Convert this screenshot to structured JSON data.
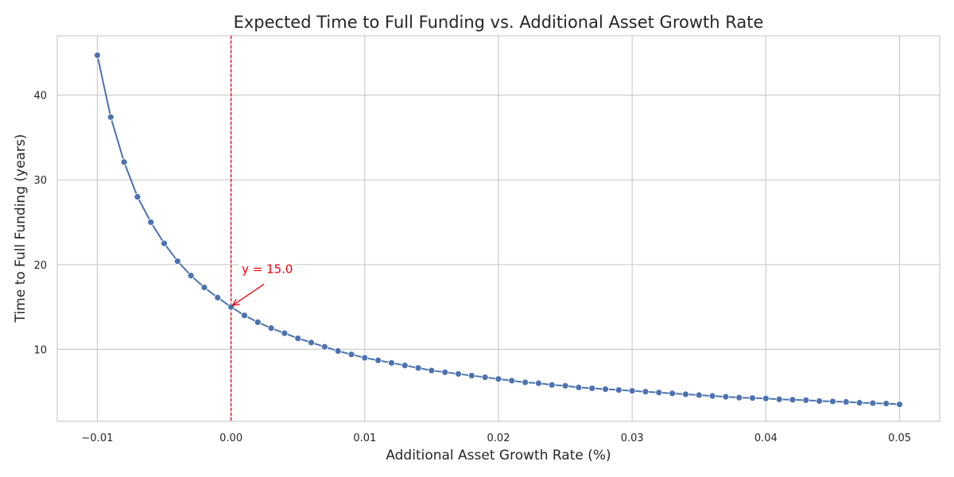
{
  "chart_data": {
    "type": "line",
    "title": "Expected Time to Full Funding vs. Additional Asset Growth Rate",
    "xlabel": "Additional Asset Growth Rate (%)",
    "ylabel": "Time to Full Funding (years)",
    "xlim": [
      -0.013,
      0.053
    ],
    "ylim": [
      1.5,
      47
    ],
    "xticks": [
      -0.01,
      0.0,
      0.01,
      0.02,
      0.03,
      0.04,
      0.05
    ],
    "xtick_labels": [
      "−0.01",
      "0.00",
      "0.01",
      "0.02",
      "0.03",
      "0.04",
      "0.05"
    ],
    "yticks": [
      10,
      20,
      30,
      40
    ],
    "ytick_labels": [
      "10",
      "20",
      "30",
      "40"
    ],
    "grid": true,
    "series": [
      {
        "x": [
          -0.01,
          -0.009,
          -0.008,
          -0.007,
          -0.006,
          -0.005,
          -0.004,
          -0.003,
          -0.002,
          -0.001,
          0.0,
          0.001,
          0.002,
          0.003,
          0.004,
          0.005,
          0.006,
          0.007,
          0.008,
          0.009,
          0.01,
          0.011,
          0.012,
          0.013,
          0.014,
          0.015,
          0.016,
          0.017,
          0.018,
          0.019,
          0.02,
          0.021,
          0.022,
          0.023,
          0.024,
          0.025,
          0.026,
          0.027,
          0.028,
          0.029,
          0.03,
          0.031,
          0.032,
          0.033,
          0.034,
          0.035,
          0.036,
          0.037,
          0.038,
          0.039,
          0.04,
          0.041,
          0.042,
          0.043,
          0.044,
          0.045,
          0.046,
          0.047,
          0.048,
          0.049,
          0.05
        ],
        "y": [
          44.7,
          37.4,
          32.1,
          28.0,
          25.0,
          22.5,
          20.4,
          18.7,
          17.3,
          16.1,
          15.0,
          14.0,
          13.2,
          12.5,
          11.9,
          11.3,
          10.8,
          10.3,
          9.8,
          9.4,
          9.0,
          8.7,
          8.4,
          8.1,
          7.8,
          7.5,
          7.3,
          7.1,
          6.9,
          6.7,
          6.5,
          6.3,
          6.1,
          6.0,
          5.8,
          5.7,
          5.5,
          5.4,
          5.3,
          5.2,
          5.1,
          5.0,
          4.9,
          4.8,
          4.7,
          4.6,
          4.5,
          4.4,
          4.3,
          4.25,
          4.2,
          4.1,
          4.05,
          4.0,
          3.9,
          3.85,
          3.8,
          3.7,
          3.65,
          3.6,
          3.5
        ]
      }
    ],
    "reference_line": {
      "orientation": "vertical",
      "x": 0.0,
      "style": "dashed",
      "color": "#e8000b"
    },
    "annotation": {
      "text": "y = 15.0",
      "x": 0.0,
      "y": 15.0,
      "text_x": 0.0008,
      "text_y": 19.0,
      "color": "#e8000b"
    },
    "colors": {
      "series": "#4c72b0",
      "grid": "#cccccc",
      "annotation": "#e8000b"
    }
  }
}
